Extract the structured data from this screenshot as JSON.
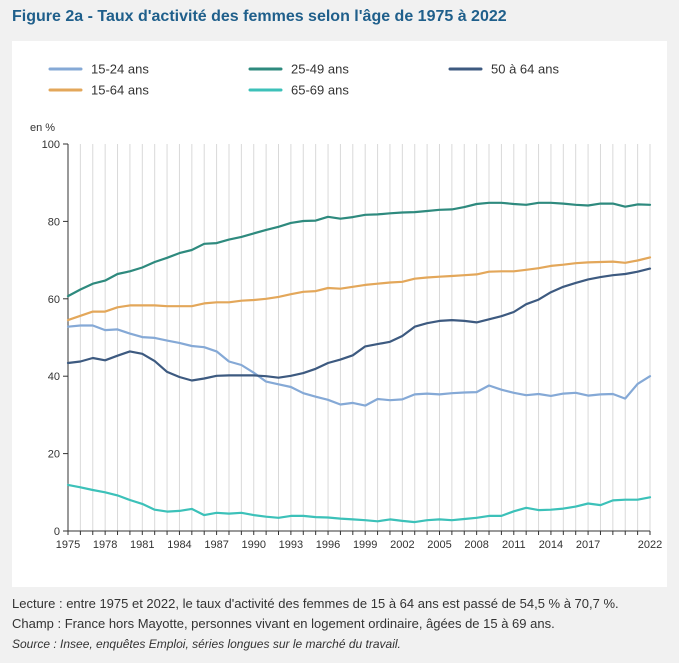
{
  "title": "Figure 2a - Taux d'activité des femmes selon l'âge de 1975 à 2022",
  "notes": {
    "lecture": "Lecture : entre 1975 et 2022, le taux d'activité des femmes de 15 à 64 ans est passé de 54,5 % à 70,7 %.",
    "champ": "Champ : France hors Mayotte, personnes vivant en logement ordinaire, âgées de 15 à 69 ans.",
    "source": "Source : Insee, enquêtes Emploi, séries longues sur le marché du travail."
  },
  "chart_data": {
    "type": "line",
    "ylabel": "en %",
    "ylim": [
      0,
      100
    ],
    "yticks": [
      0,
      20,
      40,
      60,
      80,
      100
    ],
    "xticks": [
      1975,
      1978,
      1981,
      1984,
      1987,
      1990,
      1993,
      1996,
      1999,
      2002,
      2005,
      2008,
      2011,
      2014,
      2017,
      2022
    ],
    "grid": "vertical",
    "legend_position": "top",
    "x": [
      1975,
      1976,
      1977,
      1978,
      1979,
      1980,
      1981,
      1982,
      1983,
      1984,
      1985,
      1986,
      1987,
      1988,
      1989,
      1990,
      1991,
      1992,
      1993,
      1994,
      1995,
      1996,
      1997,
      1998,
      1999,
      2000,
      2001,
      2002,
      2003,
      2004,
      2005,
      2006,
      2007,
      2008,
      2009,
      2010,
      2011,
      2012,
      2013,
      2014,
      2015,
      2016,
      2017,
      2018,
      2019,
      2020,
      2021,
      2022
    ],
    "series": [
      {
        "name": "15-24 ans",
        "color": "#85a9d6",
        "values": [
          52.8,
          53.1,
          53.1,
          51.9,
          52.1,
          51.0,
          50.1,
          49.9,
          49.2,
          48.6,
          47.8,
          47.5,
          46.4,
          43.8,
          42.9,
          40.9,
          38.6,
          37.9,
          37.2,
          35.6,
          34.7,
          33.9,
          32.7,
          33.1,
          32.4,
          34.1,
          33.8,
          34.0,
          35.3,
          35.5,
          35.3,
          35.6,
          35.8,
          35.9,
          37.6,
          36.5,
          35.7,
          35.1,
          35.4,
          34.9,
          35.5,
          35.7,
          35.0,
          35.3,
          35.4,
          34.2,
          38.0,
          40.0
        ]
      },
      {
        "name": "15-64 ans",
        "color": "#e3a75a",
        "values": [
          54.5,
          55.6,
          56.7,
          56.7,
          57.8,
          58.3,
          58.3,
          58.3,
          58.1,
          58.1,
          58.1,
          58.8,
          59.1,
          59.1,
          59.5,
          59.7,
          60.0,
          60.5,
          61.2,
          61.8,
          62.0,
          62.8,
          62.6,
          63.1,
          63.6,
          63.9,
          64.2,
          64.4,
          65.2,
          65.5,
          65.7,
          65.9,
          66.1,
          66.3,
          67.0,
          67.1,
          67.1,
          67.5,
          67.9,
          68.5,
          68.8,
          69.2,
          69.4,
          69.5,
          69.6,
          69.3,
          69.9,
          70.7
        ]
      },
      {
        "name": "25-49 ans",
        "color": "#2e8a7e",
        "values": [
          60.7,
          62.4,
          63.9,
          64.7,
          66.4,
          67.1,
          68.1,
          69.5,
          70.6,
          71.8,
          72.6,
          74.2,
          74.4,
          75.3,
          76.0,
          76.9,
          77.8,
          78.6,
          79.6,
          80.1,
          80.2,
          81.2,
          80.7,
          81.1,
          81.7,
          81.8,
          82.1,
          82.3,
          82.4,
          82.7,
          83.0,
          83.1,
          83.7,
          84.5,
          84.8,
          84.8,
          84.5,
          84.3,
          84.8,
          84.8,
          84.6,
          84.3,
          84.1,
          84.6,
          84.6,
          83.8,
          84.4,
          84.3
        ]
      },
      {
        "name": "65-69 ans",
        "color": "#3cc1b9",
        "values": [
          11.9,
          11.3,
          10.6,
          10.0,
          9.2,
          8.0,
          7.0,
          5.5,
          5.0,
          5.2,
          5.7,
          4.1,
          4.7,
          4.5,
          4.7,
          4.1,
          3.7,
          3.4,
          3.9,
          3.9,
          3.6,
          3.5,
          3.2,
          3.0,
          2.8,
          2.5,
          3.0,
          2.6,
          2.3,
          2.8,
          3.0,
          2.8,
          3.1,
          3.4,
          3.9,
          3.9,
          5.1,
          6.0,
          5.4,
          5.5,
          5.8,
          6.3,
          7.1,
          6.7,
          7.9,
          8.1,
          8.1,
          8.7
        ]
      },
      {
        "name": "50 à 64 ans",
        "color": "#3d5a80",
        "values": [
          43.4,
          43.8,
          44.7,
          44.1,
          45.3,
          46.4,
          45.8,
          43.9,
          41.1,
          39.8,
          38.9,
          39.4,
          40.1,
          40.2,
          40.2,
          40.2,
          40.0,
          39.6,
          40.1,
          40.8,
          41.9,
          43.4,
          44.3,
          45.4,
          47.7,
          48.3,
          48.9,
          50.4,
          52.8,
          53.7,
          54.3,
          54.5,
          54.3,
          53.9,
          54.7,
          55.5,
          56.6,
          58.6,
          59.8,
          61.7,
          63.1,
          64.1,
          65.0,
          65.6,
          66.1,
          66.4,
          67.0,
          67.8
        ]
      }
    ],
    "legend": [
      {
        "label": "15-24 ans",
        "color": "#85a9d6"
      },
      {
        "label": "25-49 ans",
        "color": "#2e8a7e"
      },
      {
        "label": "50 à 64 ans",
        "color": "#3d5a80"
      },
      {
        "label": "15-64 ans",
        "color": "#e3a75a"
      },
      {
        "label": "65-69 ans",
        "color": "#3cc1b9"
      }
    ]
  }
}
